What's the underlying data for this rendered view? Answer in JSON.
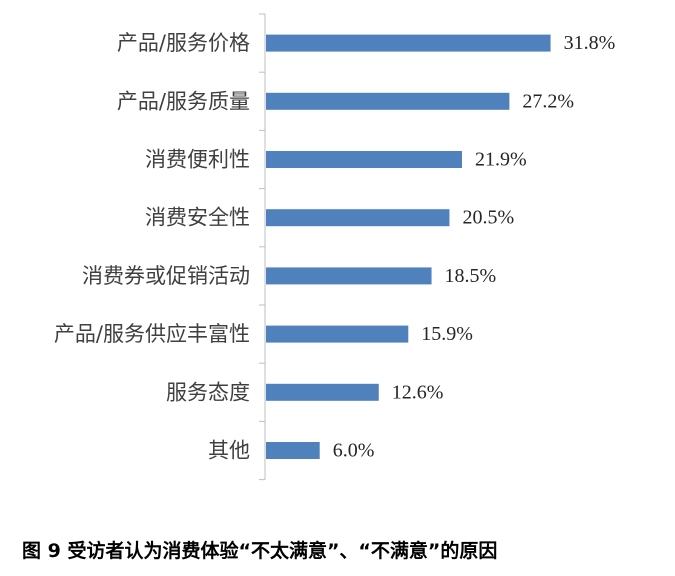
{
  "caption": "图 9  受访者认为消费体验“不太满意”、“不满意”的原因",
  "colors": {
    "bar": "#4f81bd",
    "axis": "#bfbfbf",
    "label_text": "#404040",
    "value_text": "#262626"
  },
  "chart_data": {
    "type": "bar",
    "orientation": "horizontal",
    "categories": [
      "产品/服务价格",
      "产品/服务质量",
      "消费便利性",
      "消费安全性",
      "消费券或促销活动",
      "产品/服务供应丰富性",
      "服务态度",
      "其他"
    ],
    "values": [
      31.8,
      27.2,
      21.9,
      20.5,
      18.5,
      15.9,
      12.6,
      6.0
    ],
    "value_labels": [
      "31.8%",
      "27.2%",
      "21.9%",
      "20.5%",
      "18.5%",
      "15.9%",
      "12.6%",
      "6.0%"
    ],
    "title": "",
    "xlabel": "",
    "ylabel": "",
    "xlim": [
      0,
      35
    ],
    "grid": false,
    "legend": "none"
  }
}
